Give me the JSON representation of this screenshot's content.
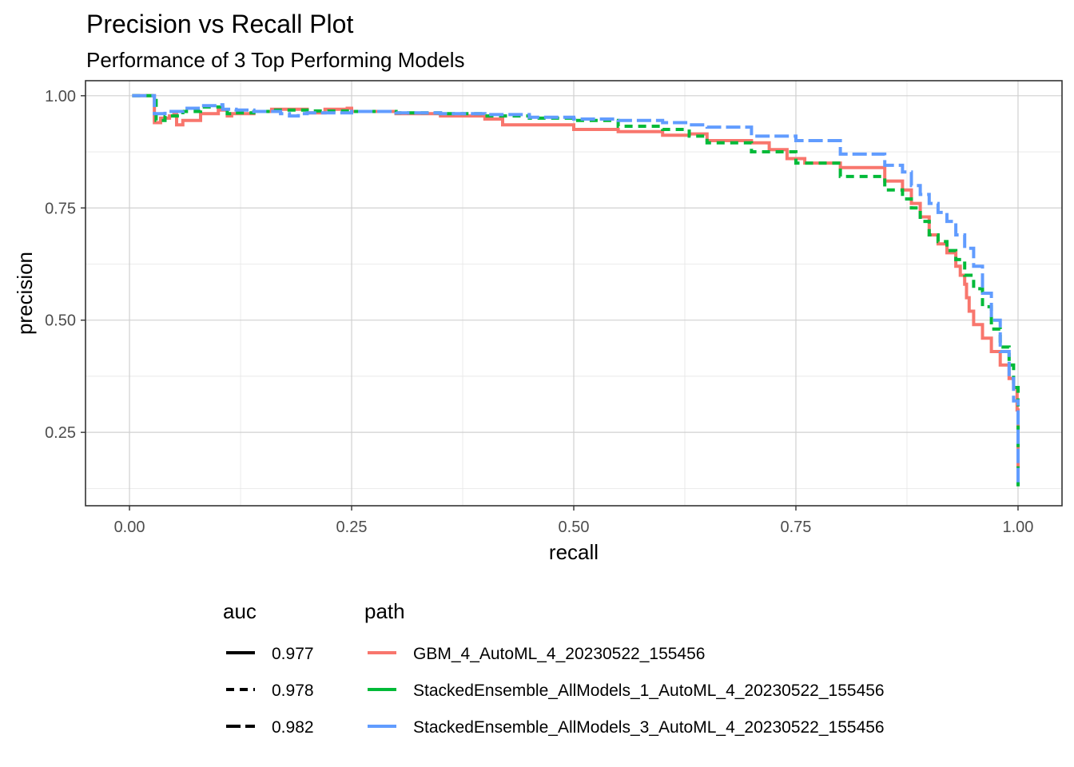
{
  "chart_data": {
    "type": "line",
    "title": "Precision vs Recall Plot",
    "subtitle": "Performance of 3 Top Performing Models",
    "xlabel": "recall",
    "ylabel": "precision",
    "xlim": [
      -0.0495,
      1.0495
    ],
    "ylim": [
      0.0865,
      1.0335
    ],
    "xticks": [
      0,
      0.25,
      0.5,
      0.75,
      1
    ],
    "xtick_labels": [
      "0.00",
      "0.25",
      "0.50",
      "0.75",
      "1.00"
    ],
    "yticks": [
      0.25,
      0.5,
      0.75,
      1
    ],
    "ytick_labels": [
      "0.25",
      "0.50",
      "0.75",
      "1.00"
    ],
    "grid": true,
    "legend_position": "bottom",
    "legend_auc": {
      "title": "auc",
      "entries": [
        {
          "label": "0.977",
          "dash": "solid"
        },
        {
          "label": "0.978",
          "dash": "dashed"
        },
        {
          "label": "0.982",
          "dash": "longdash"
        }
      ]
    },
    "legend_path": {
      "title": "path",
      "entries": [
        {
          "label": "GBM_4_AutoML_4_20230522_155456",
          "color": "#F8766D"
        },
        {
          "label": "StackedEnsemble_AllModels_1_AutoML_4_20230522_155456",
          "color": "#00BA38"
        },
        {
          "label": "StackedEnsemble_AllModels_3_AutoML_4_20230522_155456",
          "color": "#619CFF"
        }
      ]
    },
    "series": [
      {
        "name": "GBM_4_AutoML_4_20230522_155456",
        "auc": "0.977",
        "color": "#F8766D",
        "dash": "solid",
        "x": [
          0.003,
          0.027,
          0.028,
          0.035,
          0.045,
          0.05,
          0.053,
          0.06,
          0.08,
          0.1,
          0.11,
          0.115,
          0.14,
          0.16,
          0.2,
          0.22,
          0.245,
          0.25,
          0.3,
          0.35,
          0.4,
          0.42,
          0.5,
          0.55,
          0.6,
          0.63,
          0.65,
          0.7,
          0.72,
          0.74,
          0.76,
          0.8,
          0.85,
          0.87,
          0.88,
          0.89,
          0.9,
          0.91,
          0.92,
          0.93,
          0.935,
          0.94,
          0.942,
          0.945,
          0.95,
          0.96,
          0.97,
          0.98,
          0.99,
          0.995,
          0.999,
          1.0,
          1.0
        ],
        "y": [
          1.0,
          1.0,
          0.94,
          0.95,
          0.955,
          0.958,
          0.935,
          0.945,
          0.96,
          0.968,
          0.955,
          0.96,
          0.965,
          0.97,
          0.962,
          0.97,
          0.972,
          0.965,
          0.96,
          0.955,
          0.948,
          0.935,
          0.925,
          0.92,
          0.912,
          0.915,
          0.9,
          0.895,
          0.88,
          0.86,
          0.85,
          0.84,
          0.81,
          0.79,
          0.76,
          0.73,
          0.69,
          0.67,
          0.65,
          0.62,
          0.6,
          0.58,
          0.55,
          0.52,
          0.49,
          0.46,
          0.43,
          0.4,
          0.37,
          0.35,
          0.3,
          0.2,
          0.13
        ]
      },
      {
        "name": "StackedEnsemble_AllModels_1_AutoML_4_20230522_155456",
        "auc": "0.978",
        "color": "#00BA38",
        "dash": "dashed",
        "x": [
          0.003,
          0.028,
          0.03,
          0.04,
          0.06,
          0.08,
          0.1,
          0.11,
          0.115,
          0.14,
          0.16,
          0.2,
          0.25,
          0.3,
          0.35,
          0.4,
          0.45,
          0.5,
          0.55,
          0.6,
          0.63,
          0.65,
          0.7,
          0.75,
          0.8,
          0.85,
          0.87,
          0.88,
          0.89,
          0.9,
          0.91,
          0.92,
          0.93,
          0.94,
          0.95,
          0.96,
          0.97,
          0.98,
          0.99,
          0.995,
          1.0,
          1.0
        ],
        "y": [
          1.0,
          1.0,
          0.945,
          0.955,
          0.965,
          0.975,
          0.975,
          0.96,
          0.962,
          0.965,
          0.968,
          0.966,
          0.965,
          0.962,
          0.96,
          0.955,
          0.95,
          0.945,
          0.932,
          0.925,
          0.91,
          0.895,
          0.875,
          0.85,
          0.82,
          0.79,
          0.77,
          0.75,
          0.72,
          0.69,
          0.675,
          0.655,
          0.635,
          0.6,
          0.57,
          0.53,
          0.48,
          0.44,
          0.4,
          0.35,
          0.2,
          0.13
        ]
      },
      {
        "name": "StackedEnsemble_AllModels_3_AutoML_4_20230522_155456",
        "auc": "0.982",
        "color": "#619CFF",
        "dash": "longdash",
        "x": [
          0.003,
          0.025,
          0.028,
          0.04,
          0.06,
          0.08,
          0.1,
          0.105,
          0.12,
          0.14,
          0.16,
          0.17,
          0.18,
          0.19,
          0.2,
          0.25,
          0.3,
          0.35,
          0.4,
          0.45,
          0.5,
          0.55,
          0.6,
          0.63,
          0.65,
          0.7,
          0.75,
          0.8,
          0.85,
          0.87,
          0.88,
          0.89,
          0.9,
          0.91,
          0.92,
          0.93,
          0.94,
          0.95,
          0.96,
          0.97,
          0.98,
          0.99,
          0.995,
          1.0,
          1.0
        ],
        "y": [
          1.0,
          1.0,
          0.96,
          0.965,
          0.972,
          0.978,
          0.98,
          0.97,
          0.968,
          0.965,
          0.965,
          0.96,
          0.955,
          0.96,
          0.962,
          0.965,
          0.962,
          0.96,
          0.958,
          0.952,
          0.948,
          0.945,
          0.94,
          0.935,
          0.93,
          0.91,
          0.9,
          0.87,
          0.845,
          0.83,
          0.8,
          0.78,
          0.76,
          0.74,
          0.72,
          0.69,
          0.66,
          0.62,
          0.56,
          0.5,
          0.43,
          0.37,
          0.32,
          0.22,
          0.13
        ]
      }
    ]
  }
}
